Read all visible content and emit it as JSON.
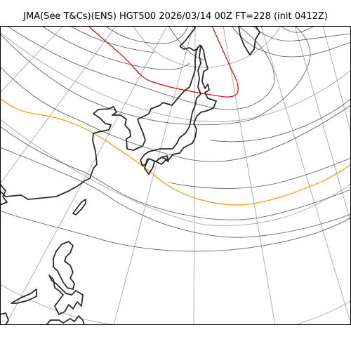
{
  "title": "JMA(See T&Cs)(ENS) HGT500 2026/03/14 00Z FT=228 (init 0412Z)",
  "colors": {
    "background": "#ffffff",
    "graticule": "#a8a8a8",
    "contour": "#555555",
    "coastline": "#2a2a2a",
    "contour_5400": "#ff9900",
    "contour_5700": "#ee0000"
  },
  "map": {
    "projection": "polar stereographic",
    "region": "East Asia / Japan / North Pacific",
    "field": "HGT500",
    "highlighted_contours": [
      "orange",
      "red"
    ]
  }
}
